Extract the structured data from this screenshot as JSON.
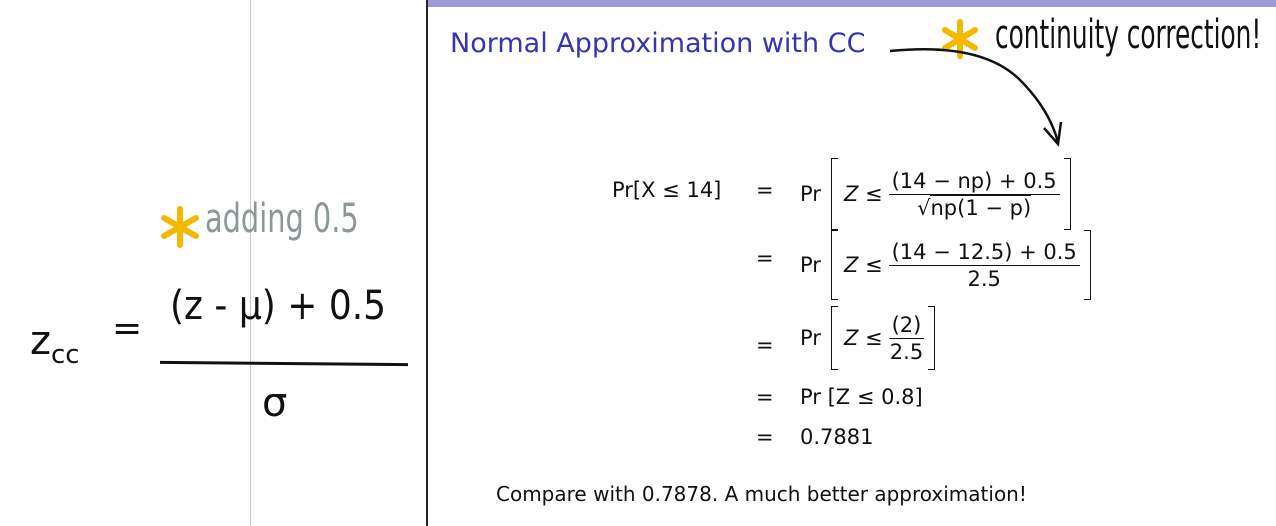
{
  "slide": {
    "title": "Normal Approximation with CC",
    "accent_color": "#3434b4",
    "top_bar_color": "#9b9bd9",
    "equations": {
      "lhs": "Pr[X ≤ 14]",
      "eq": "=",
      "row1": {
        "pr": "Pr",
        "z": "Z ≤",
        "num": "(14 − np) + 0.5",
        "den_sqrt": "√",
        "den": "np(1 − p)"
      },
      "row2": {
        "pr": "Pr",
        "z": "Z ≤",
        "num": "(14 − 12.5) + 0.5",
        "den": "2.5"
      },
      "row3": {
        "pr": "Pr",
        "z": "Z ≤",
        "num": "(2)",
        "den": "2.5"
      },
      "row4": "Pr [Z ≤ 0.8]",
      "row5": "0.7881"
    },
    "footer": "Compare with 0.7878. A much better approximation!"
  },
  "annotations": {
    "star_color": "#f5b800",
    "right_note": "continuity correction!",
    "left_note": "adding 0.5",
    "formula_lhs": "z",
    "formula_sub": "cc",
    "formula_eq": "=",
    "formula_num": "(z - μ) + 0.5",
    "formula_den": "σ"
  }
}
